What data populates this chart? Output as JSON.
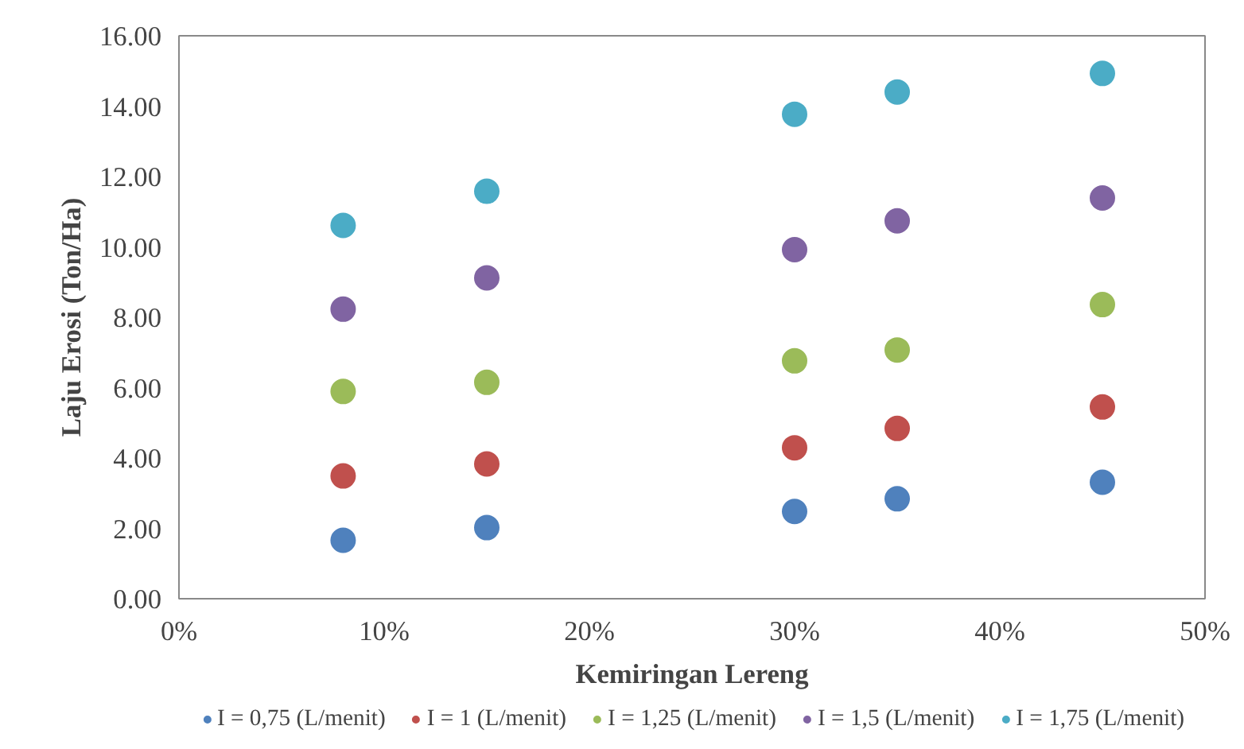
{
  "chart_data": {
    "type": "scatter",
    "xlabel": "Kemiringan Lereng",
    "ylabel": "Laju Erosi (Ton/Ha)",
    "x": [
      8,
      15,
      30,
      35,
      45
    ],
    "series": [
      {
        "name": "I = 0,75 (L/menit)",
        "color": "#4f81bd",
        "values": [
          1.66,
          2.02,
          2.48,
          2.84,
          3.31
        ]
      },
      {
        "name": "I = 1 (L/menit)",
        "color": "#c0504d",
        "values": [
          3.49,
          3.83,
          4.29,
          4.84,
          5.45
        ]
      },
      {
        "name": "I = 1,25 (L/menit)",
        "color": "#9bbb59",
        "values": [
          5.89,
          6.15,
          6.76,
          7.07,
          8.36
        ]
      },
      {
        "name": "I = 1,5 (L/menit)",
        "color": "#8064a2",
        "values": [
          8.23,
          9.12,
          9.92,
          10.74,
          11.39
        ]
      },
      {
        "name": "I = 1,75 (L/menit)",
        "color": "#4bacc6",
        "values": [
          10.61,
          11.58,
          13.77,
          14.4,
          14.93
        ]
      }
    ],
    "xlim": [
      0,
      50
    ],
    "xticks": [
      {
        "value": 0,
        "label": "0%"
      },
      {
        "value": 10,
        "label": "10%"
      },
      {
        "value": 20,
        "label": "20%"
      },
      {
        "value": 30,
        "label": "30%"
      },
      {
        "value": 40,
        "label": "40%"
      },
      {
        "value": 50,
        "label": "50%"
      }
    ],
    "ylim": [
      0,
      16
    ],
    "yticks": [
      {
        "value": 0,
        "label": "0.00"
      },
      {
        "value": 2,
        "label": "2.00"
      },
      {
        "value": 4,
        "label": "4.00"
      },
      {
        "value": 6,
        "label": "6.00"
      },
      {
        "value": 8,
        "label": "8.00"
      },
      {
        "value": 10,
        "label": "10.00"
      },
      {
        "value": 12,
        "label": "12.00"
      },
      {
        "value": 14,
        "label": "14.00"
      },
      {
        "value": 16,
        "label": "16.00"
      }
    ],
    "grid": false,
    "legend": "bottom",
    "marker": "circle"
  }
}
